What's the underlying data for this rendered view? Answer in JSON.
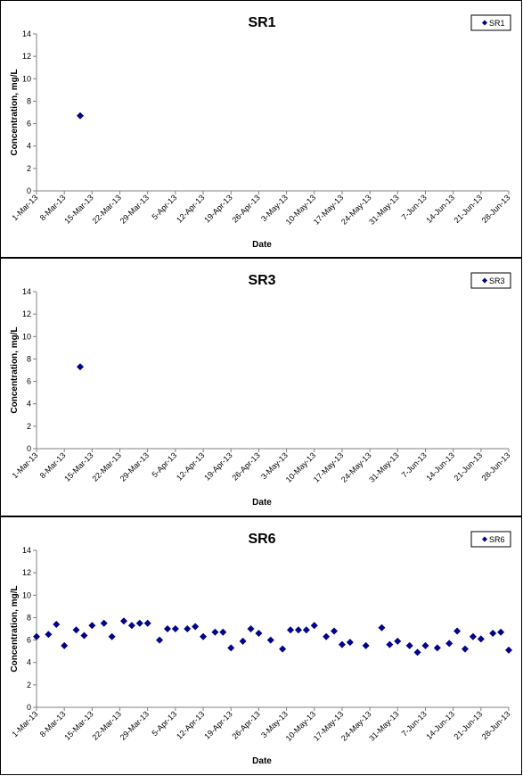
{
  "chart_data": [
    {
      "type": "scatter",
      "title": "SR1",
      "xlabel": "Date",
      "ylabel": "Concentration, mg/L",
      "ylim": [
        0,
        14
      ],
      "y_ticks": [
        "0",
        "2",
        "4",
        "6",
        "8",
        "10",
        "12",
        "14"
      ],
      "x_ticks": [
        "1-Mar-13",
        "8-Mar-13",
        "15-Mar-13",
        "22-Mar-13",
        "29-Mar-13",
        "5-Apr-13",
        "12-Apr-13",
        "19-Apr-13",
        "26-Apr-13",
        "3-May-13",
        "10-May-13",
        "17-May-13",
        "24-May-13",
        "31-May-13",
        "7-Jun-13",
        "14-Jun-13",
        "21-Jun-13",
        "28-Jun-13"
      ],
      "legend_position": "top-right",
      "grid": false,
      "series": [
        {
          "name": "SR1",
          "color": "#00008B",
          "marker": "diamond",
          "points": [
            [
              "12-Mar-13",
              6.7
            ]
          ]
        }
      ]
    },
    {
      "type": "scatter",
      "title": "SR3",
      "xlabel": "Date",
      "ylabel": "Concentration, mg/L",
      "ylim": [
        0,
        14
      ],
      "y_ticks": [
        "0",
        "2",
        "4",
        "6",
        "8",
        "10",
        "12",
        "14"
      ],
      "x_ticks": [
        "1-Mar-13",
        "8-Mar-13",
        "15-Mar-13",
        "22-Mar-13",
        "29-Mar-13",
        "5-Apr-13",
        "12-Apr-13",
        "19-Apr-13",
        "26-Apr-13",
        "3-May-13",
        "10-May-13",
        "17-May-13",
        "24-May-13",
        "31-May-13",
        "7-Jun-13",
        "14-Jun-13",
        "21-Jun-13",
        "28-Jun-13"
      ],
      "legend_position": "top-right",
      "grid": false,
      "series": [
        {
          "name": "SR3",
          "color": "#00008B",
          "marker": "diamond",
          "points": [
            [
              "12-Mar-13",
              7.3
            ]
          ]
        }
      ]
    },
    {
      "type": "scatter",
      "title": "SR6",
      "xlabel": "Date",
      "ylabel": "Concentration, mg/L",
      "ylim": [
        0,
        14
      ],
      "y_ticks": [
        "0",
        "2",
        "4",
        "6",
        "8",
        "10",
        "12",
        "14"
      ],
      "x_ticks": [
        "1-Mar-13",
        "8-Mar-13",
        "15-Mar-13",
        "22-Mar-13",
        "29-Mar-13",
        "5-Apr-13",
        "12-Apr-13",
        "19-Apr-13",
        "26-Apr-13",
        "3-May-13",
        "10-May-13",
        "17-May-13",
        "24-May-13",
        "31-May-13",
        "7-Jun-13",
        "14-Jun-13",
        "21-Jun-13",
        "28-Jun-13"
      ],
      "legend_position": "top-right",
      "grid": false,
      "series": [
        {
          "name": "SR6",
          "color": "#00008B",
          "marker": "diamond",
          "points": [
            [
              "1-Mar-13",
              6.3
            ],
            [
              "4-Mar-13",
              6.5
            ],
            [
              "6-Mar-13",
              7.4
            ],
            [
              "8-Mar-13",
              5.5
            ],
            [
              "11-Mar-13",
              6.9
            ],
            [
              "13-Mar-13",
              6.4
            ],
            [
              "15-Mar-13",
              7.3
            ],
            [
              "18-Mar-13",
              7.5
            ],
            [
              "20-Mar-13",
              6.3
            ],
            [
              "23-Mar-13",
              7.7
            ],
            [
              "25-Mar-13",
              7.3
            ],
            [
              "27-Mar-13",
              7.5
            ],
            [
              "29-Mar-13",
              7.5
            ],
            [
              "1-Apr-13",
              6.0
            ],
            [
              "3-Apr-13",
              7.0
            ],
            [
              "5-Apr-13",
              7.0
            ],
            [
              "8-Apr-13",
              7.0
            ],
            [
              "10-Apr-13",
              7.2
            ],
            [
              "12-Apr-13",
              6.3
            ],
            [
              "15-Apr-13",
              6.7
            ],
            [
              "17-Apr-13",
              6.7
            ],
            [
              "19-Apr-13",
              5.3
            ],
            [
              "22-Apr-13",
              5.9
            ],
            [
              "24-Apr-13",
              7.0
            ],
            [
              "26-Apr-13",
              6.6
            ],
            [
              "29-Apr-13",
              6.0
            ],
            [
              "2-May-13",
              5.2
            ],
            [
              "4-May-13",
              6.9
            ],
            [
              "6-May-13",
              6.9
            ],
            [
              "8-May-13",
              6.9
            ],
            [
              "10-May-13",
              7.3
            ],
            [
              "13-May-13",
              6.3
            ],
            [
              "15-May-13",
              6.8
            ],
            [
              "17-May-13",
              5.6
            ],
            [
              "19-May-13",
              5.8
            ],
            [
              "23-May-13",
              5.5
            ],
            [
              "27-May-13",
              7.1
            ],
            [
              "29-May-13",
              5.6
            ],
            [
              "31-May-13",
              5.9
            ],
            [
              "3-Jun-13",
              5.5
            ],
            [
              "5-Jun-13",
              4.9
            ],
            [
              "7-Jun-13",
              5.5
            ],
            [
              "10-Jun-13",
              5.3
            ],
            [
              "13-Jun-13",
              5.7
            ],
            [
              "15-Jun-13",
              6.8
            ],
            [
              "17-Jun-13",
              5.2
            ],
            [
              "19-Jun-13",
              6.3
            ],
            [
              "21-Jun-13",
              6.1
            ],
            [
              "24-Jun-13",
              6.6
            ],
            [
              "26-Jun-13",
              6.7
            ],
            [
              "28-Jun-13",
              5.1
            ]
          ]
        }
      ]
    }
  ]
}
